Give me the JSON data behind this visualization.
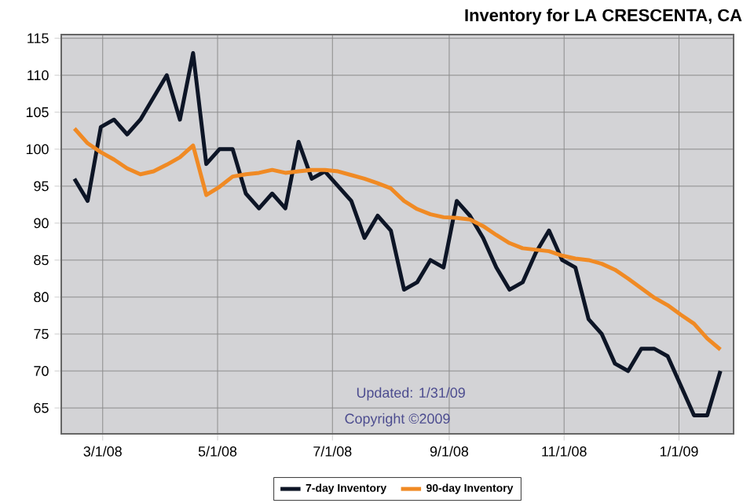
{
  "chart_data": {
    "type": "line",
    "title": "Inventory for LA CRESCENTA, CA",
    "x": [
      "2008-02-15",
      "2008-02-22",
      "2008-02-29",
      "2008-03-07",
      "2008-03-14",
      "2008-03-21",
      "2008-03-28",
      "2008-04-04",
      "2008-04-11",
      "2008-04-18",
      "2008-04-25",
      "2008-05-02",
      "2008-05-09",
      "2008-05-16",
      "2008-05-23",
      "2008-05-30",
      "2008-06-06",
      "2008-06-13",
      "2008-06-20",
      "2008-06-27",
      "2008-07-04",
      "2008-07-11",
      "2008-07-18",
      "2008-07-25",
      "2008-08-01",
      "2008-08-08",
      "2008-08-15",
      "2008-08-22",
      "2008-08-29",
      "2008-09-05",
      "2008-09-12",
      "2008-09-19",
      "2008-09-26",
      "2008-10-03",
      "2008-10-10",
      "2008-10-17",
      "2008-10-24",
      "2008-10-31",
      "2008-11-07",
      "2008-11-14",
      "2008-11-21",
      "2008-11-28",
      "2008-12-05",
      "2008-12-12",
      "2008-12-19",
      "2008-12-26",
      "2009-01-02",
      "2009-01-09",
      "2009-01-16",
      "2009-01-23"
    ],
    "series": [
      {
        "name": "7-day Inventory",
        "color": "#0d1526",
        "values": [
          96,
          93,
          103,
          104,
          102,
          104,
          107,
          110,
          104,
          113,
          98,
          100,
          100,
          94,
          92,
          94,
          92,
          101,
          96,
          97,
          95,
          93,
          88,
          91,
          89,
          81,
          82,
          85,
          84,
          93,
          91,
          88,
          84,
          81,
          82,
          86,
          89,
          85,
          84,
          77,
          75,
          71,
          70,
          73,
          73,
          72,
          68,
          64,
          64,
          70
        ]
      },
      {
        "name": "90-day Inventory",
        "color": "#f08a24",
        "values": [
          102.8,
          100.8,
          99.6,
          98.6,
          97.4,
          96.6,
          97.0,
          97.9,
          98.9,
          100.5,
          93.8,
          94.9,
          96.3,
          96.6,
          96.8,
          97.2,
          96.8,
          97.0,
          97.2,
          97.2,
          97.0,
          96.5,
          96.0,
          95.4,
          94.7,
          93.0,
          91.9,
          91.2,
          90.8,
          90.7,
          90.5,
          89.6,
          88.4,
          87.3,
          86.6,
          86.4,
          86.2,
          85.6,
          85.2,
          85.0,
          84.5,
          83.7,
          82.5,
          81.2,
          79.9,
          78.9,
          77.6,
          76.4,
          74.4,
          72.9
        ]
      }
    ],
    "xlim": [
      "2008-02-08",
      "2009-01-30"
    ],
    "xticks": [
      {
        "value": "2008-03-01",
        "label": "3/1/08"
      },
      {
        "value": "2008-05-01",
        "label": "5/1/08"
      },
      {
        "value": "2008-07-01",
        "label": "7/1/08"
      },
      {
        "value": "2008-09-01",
        "label": "9/1/08"
      },
      {
        "value": "2008-11-01",
        "label": "11/1/08"
      },
      {
        "value": "2009-01-01",
        "label": "1/1/09"
      }
    ],
    "ylim": [
      61.5,
      115.5
    ],
    "yticks": [
      65,
      70,
      75,
      80,
      85,
      90,
      95,
      100,
      105,
      110,
      115
    ],
    "grid": true,
    "legend": "bottom",
    "annotations": [
      "Updated: 1/31/09",
      "Copyright ©2009"
    ]
  }
}
